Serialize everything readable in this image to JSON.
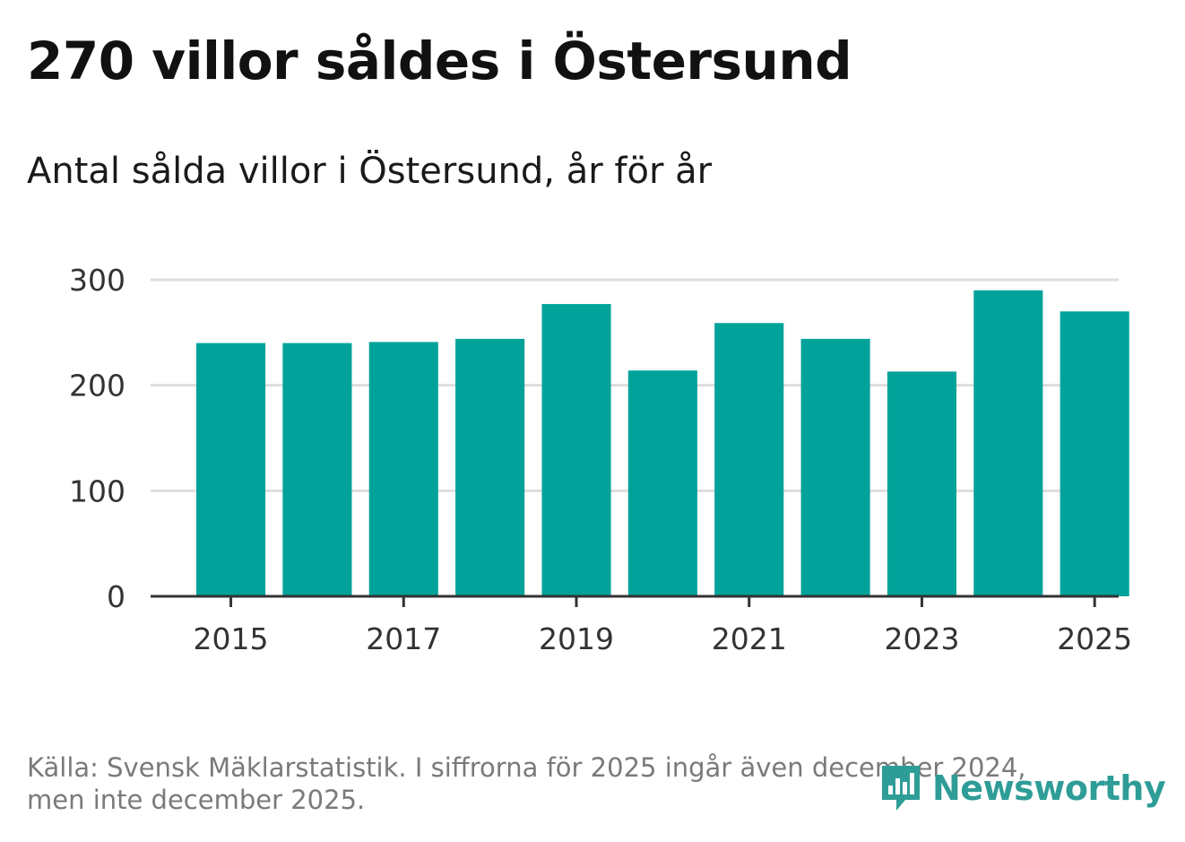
{
  "title": "270 villor såldes i Östersund",
  "subtitle": "Antal sålda villor i Östersund, år för år",
  "source_line1": "Källa: Svensk Mäklarstatistik. I siffrorna för 2025 ingår även december 2024,",
  "source_line2": "men inte december 2025.",
  "logo_text": "Newsworthy",
  "colors": {
    "bar": "#00a29a",
    "grid": "#dddddd",
    "axis": "#333333",
    "logo": "#2f9d97"
  },
  "chart_data": {
    "type": "bar",
    "title": "270 villor såldes i Östersund",
    "subtitle": "Antal sålda villor i Östersund, år för år",
    "xlabel": "",
    "ylabel": "",
    "categories": [
      "2015",
      "2016",
      "2017",
      "2018",
      "2019",
      "2020",
      "2021",
      "2022",
      "2023",
      "2024",
      "2025"
    ],
    "values": [
      240,
      240,
      241,
      244,
      277,
      214,
      259,
      244,
      213,
      290,
      270
    ],
    "x_tick_labels": [
      "2015",
      "2017",
      "2019",
      "2021",
      "2023",
      "2025"
    ],
    "y_ticks": [
      0,
      100,
      200,
      300
    ],
    "ylim": [
      0,
      300
    ],
    "grid": true
  }
}
